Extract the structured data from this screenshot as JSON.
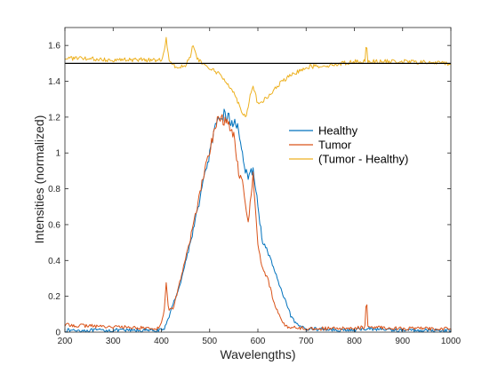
{
  "chart_data": {
    "type": "line",
    "title": "",
    "xlabel": "Wavelengths)",
    "ylabel": "Intensities (normalized)",
    "xlim": [
      200,
      1000
    ],
    "ylim": [
      0,
      1.7
    ],
    "xticks": [
      "200",
      "300",
      "400",
      "500",
      "600",
      "700",
      "800",
      "900",
      "1000"
    ],
    "yticks": [
      "0",
      "0.2",
      "0.4",
      "0.6",
      "0.8",
      "1",
      "1.2",
      "1.4",
      "1.6"
    ],
    "grid": false,
    "legend_position": "right",
    "reference_line": {
      "y": 1.5,
      "color": "#000000"
    },
    "series": [
      {
        "name": "Healthy",
        "color": "#0072BD",
        "points": [
          [
            200,
            0.01
          ],
          [
            300,
            0.01
          ],
          [
            405,
            0.01
          ],
          [
            410,
            0.05
          ],
          [
            420,
            0.12
          ],
          [
            440,
            0.28
          ],
          [
            460,
            0.5
          ],
          [
            470,
            0.62
          ],
          [
            480,
            0.75
          ],
          [
            500,
            1.0
          ],
          [
            510,
            1.12
          ],
          [
            520,
            1.18
          ],
          [
            530,
            1.22
          ],
          [
            540,
            1.19
          ],
          [
            550,
            1.16
          ],
          [
            560,
            1.15
          ],
          [
            570,
            0.95
          ],
          [
            580,
            0.84
          ],
          [
            590,
            0.92
          ],
          [
            600,
            0.7
          ],
          [
            610,
            0.5
          ],
          [
            620,
            0.45
          ],
          [
            630,
            0.38
          ],
          [
            640,
            0.3
          ],
          [
            650,
            0.22
          ],
          [
            660,
            0.15
          ],
          [
            670,
            0.08
          ],
          [
            680,
            0.04
          ],
          [
            700,
            0.02
          ],
          [
            800,
            0.01
          ],
          [
            825,
            0.02
          ],
          [
            900,
            0.01
          ],
          [
            1000,
            0.01
          ]
        ]
      },
      {
        "name": "Tumor",
        "color": "#D95319",
        "points": [
          [
            200,
            0.04
          ],
          [
            300,
            0.03
          ],
          [
            395,
            0.02
          ],
          [
            405,
            0.1
          ],
          [
            410,
            0.28
          ],
          [
            415,
            0.12
          ],
          [
            425,
            0.14
          ],
          [
            440,
            0.3
          ],
          [
            460,
            0.52
          ],
          [
            470,
            0.65
          ],
          [
            480,
            0.78
          ],
          [
            500,
            1.02
          ],
          [
            510,
            1.13
          ],
          [
            520,
            1.2
          ],
          [
            530,
            1.18
          ],
          [
            540,
            1.15
          ],
          [
            550,
            1.1
          ],
          [
            560,
            0.9
          ],
          [
            570,
            0.82
          ],
          [
            580,
            0.6
          ],
          [
            590,
            0.88
          ],
          [
            600,
            0.48
          ],
          [
            610,
            0.35
          ],
          [
            620,
            0.3
          ],
          [
            630,
            0.2
          ],
          [
            640,
            0.12
          ],
          [
            650,
            0.06
          ],
          [
            660,
            0.03
          ],
          [
            700,
            0.02
          ],
          [
            800,
            0.02
          ],
          [
            822,
            0.03
          ],
          [
            825,
            0.2
          ],
          [
            828,
            0.03
          ],
          [
            900,
            0.02
          ],
          [
            1000,
            0.02
          ]
        ]
      },
      {
        "name": "(Tumor - Healthy)",
        "color": "#EDB120",
        "points": [
          [
            200,
            1.53
          ],
          [
            300,
            1.52
          ],
          [
            400,
            1.52
          ],
          [
            405,
            1.56
          ],
          [
            410,
            1.64
          ],
          [
            415,
            1.53
          ],
          [
            430,
            1.48
          ],
          [
            450,
            1.49
          ],
          [
            460,
            1.54
          ],
          [
            465,
            1.6
          ],
          [
            475,
            1.52
          ],
          [
            490,
            1.49
          ],
          [
            520,
            1.44
          ],
          [
            540,
            1.38
          ],
          [
            555,
            1.31
          ],
          [
            565,
            1.24
          ],
          [
            575,
            1.2
          ],
          [
            585,
            1.33
          ],
          [
            590,
            1.38
          ],
          [
            600,
            1.27
          ],
          [
            620,
            1.31
          ],
          [
            650,
            1.4
          ],
          [
            680,
            1.45
          ],
          [
            700,
            1.48
          ],
          [
            750,
            1.49
          ],
          [
            800,
            1.51
          ],
          [
            822,
            1.51
          ],
          [
            825,
            1.64
          ],
          [
            828,
            1.51
          ],
          [
            900,
            1.51
          ],
          [
            1000,
            1.5
          ]
        ]
      }
    ]
  }
}
